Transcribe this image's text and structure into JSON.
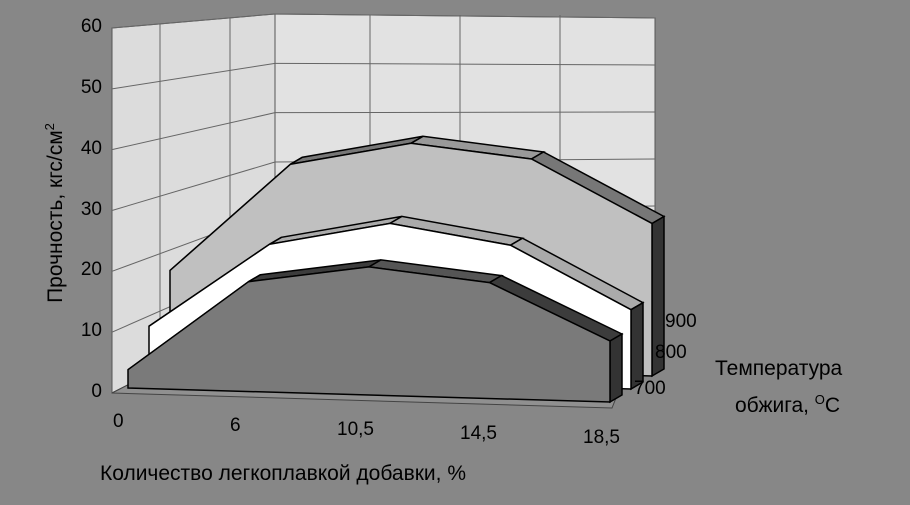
{
  "chart_data": {
    "type": "area-3d",
    "title": "",
    "xlabel": "Количество легкоплавкой добавки, %",
    "ylabel": "Прочность, кгс/см",
    "ylabel_superscript": "2",
    "zlabel_line1": "Температура",
    "zlabel_line2": "обжига, ",
    "zlabel_degree": "O",
    "zlabel_unit": "C",
    "categories": [
      "0",
      "6",
      "10,5",
      "14,5",
      "18,5"
    ],
    "yticks": [
      "0",
      "10",
      "20",
      "30",
      "40",
      "50",
      "60"
    ],
    "ylim": [
      0,
      60
    ],
    "grid": true,
    "series": [
      {
        "name": "700",
        "values": [
          3,
          18,
          21,
          19,
          10
        ],
        "color": "#7a7a7a"
      },
      {
        "name": "800",
        "values": [
          8,
          22,
          26,
          23,
          13
        ],
        "color": "#ffffff"
      },
      {
        "name": "900",
        "values": [
          15,
          33,
          37,
          35,
          25
        ],
        "color": "#c0c0c0"
      }
    ]
  }
}
